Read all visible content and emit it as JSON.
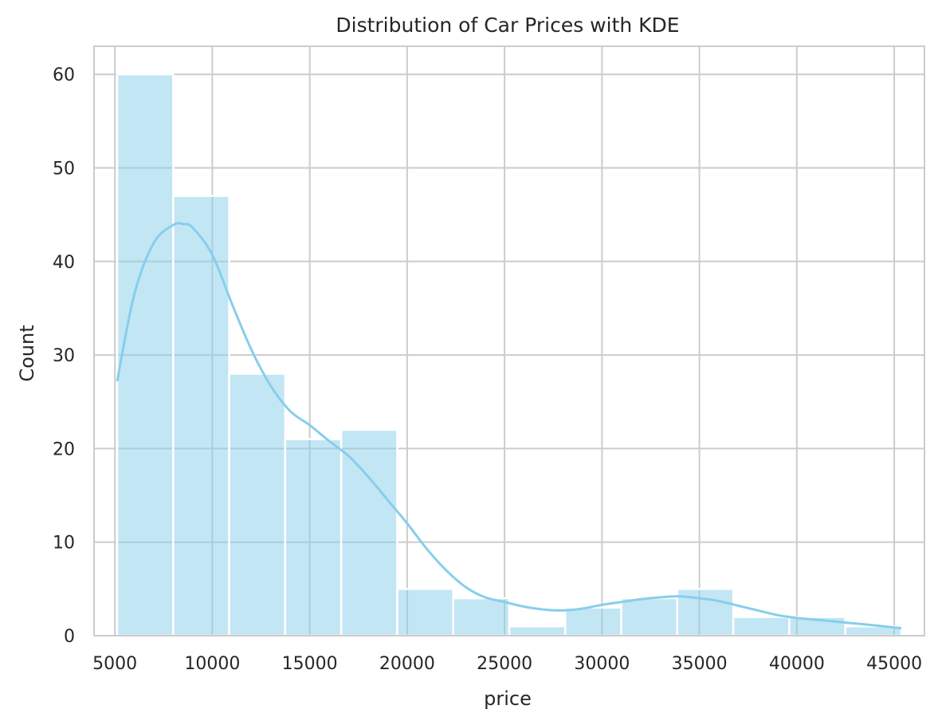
{
  "chart_data": {
    "type": "bar",
    "title": "Distribution of Car Prices with KDE",
    "xlabel": "price",
    "ylabel": "Count",
    "bin_edges": [
      5118,
      7993,
      10867,
      13742,
      16617,
      19491,
      22366,
      25241,
      28115,
      30990,
      33865,
      36740,
      39614,
      42489,
      45364
    ],
    "values": [
      60,
      47,
      28,
      21,
      22,
      5,
      4,
      1,
      3,
      4,
      5,
      2,
      2,
      1
    ],
    "kde": {
      "x": [
        5118,
        6000,
        7000,
        8000,
        8500,
        9000,
        10000,
        11000,
        12000,
        13000,
        14000,
        15000,
        16000,
        17000,
        18000,
        19000,
        20000,
        21000,
        22000,
        23000,
        24000,
        25000,
        26000,
        27000,
        28000,
        29000,
        30000,
        31000,
        32000,
        33000,
        34000,
        35000,
        36000,
        37000,
        38000,
        39000,
        40000,
        41000,
        42000,
        43000,
        44000,
        45364
      ],
      "y": [
        27.2,
        36.5,
        42.0,
        43.9,
        44.0,
        43.6,
        40.7,
        35.5,
        30.6,
        26.7,
        24.0,
        22.5,
        20.8,
        19.2,
        17.0,
        14.5,
        12.0,
        9.3,
        7.0,
        5.2,
        4.1,
        3.6,
        3.1,
        2.8,
        2.7,
        2.9,
        3.3,
        3.6,
        3.9,
        4.1,
        4.2,
        4.0,
        3.7,
        3.2,
        2.7,
        2.2,
        1.9,
        1.7,
        1.5,
        1.3,
        1.1,
        0.8
      ]
    },
    "xlim": [
      3930,
      46550
    ],
    "ylim": [
      0,
      63
    ],
    "xticks": [
      5000,
      10000,
      15000,
      20000,
      25000,
      30000,
      35000,
      40000,
      45000
    ],
    "yticks": [
      0,
      10,
      20,
      30,
      40,
      50,
      60
    ],
    "grid": true,
    "colors": {
      "bar_fill": "#87ceeb",
      "bar_opacity": 0.5,
      "kde_line": "#87ceeb",
      "grid": "#cccccc",
      "spine": "#cccccc"
    }
  }
}
